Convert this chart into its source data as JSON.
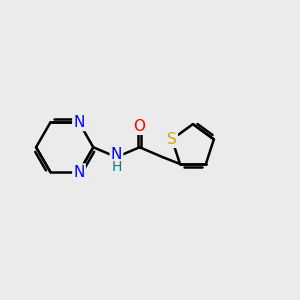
{
  "bg_color": "#ebebeb",
  "bond_color": "#000000",
  "N_color": "#0000ff",
  "O_color": "#ff0000",
  "S_color": "#ccaa00",
  "H_color": "#008080",
  "font_size": 11,
  "bond_width": 1.8,
  "xlim": [
    -2.6,
    2.8
  ],
  "ylim": [
    -1.8,
    1.8
  ]
}
